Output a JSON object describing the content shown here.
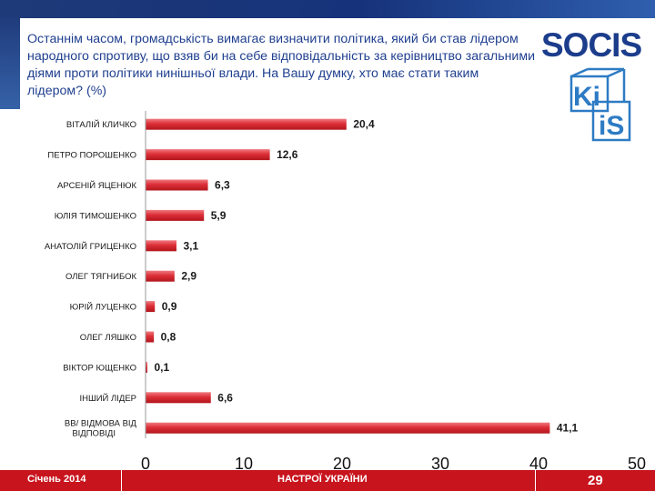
{
  "question": "Останнім часом, громадськість вимагає визначити політика, який би став лідером народного спротиву, що взяв би на себе відповідальність за керівництво загальними діями проти політики нинішньої влади. На Вашу думку, хто має стати таким лідером? (%)",
  "logos": {
    "socis_text": "SOCIS",
    "kiis_text_1": "Ki",
    "kiis_text_2": "iS"
  },
  "colors": {
    "bar": "#d82a33",
    "footer": "#c8141d",
    "header": "#1e3a78",
    "question_text": "#1f3f8f"
  },
  "chart_data": {
    "type": "bar",
    "orientation": "horizontal",
    "title": "",
    "xlabel": "",
    "ylabel": "",
    "xlim": [
      0,
      50
    ],
    "ticks": [
      0,
      10,
      20,
      30,
      40,
      50
    ],
    "categories": [
      "ВІТАЛІЙ КЛИЧКО",
      "ПЕТРО ПОРОШЕНКО",
      "АРСЕНІЙ ЯЦЕНЮК",
      "ЮЛІЯ ТИМОШЕНКО",
      "АНАТОЛІЙ ГРИЦЕНКО",
      "ОЛЕГ ТЯГНИБОК",
      "ЮРІЙ ЛУЦЕНКО",
      "ОЛЕГ ЛЯШКО",
      "ВІКТОР ЮЩЕНКО",
      "ІНШИЙ ЛІДЕР",
      "ВВ/ ВІДМОВА ВІД ВІДПОВІДІ"
    ],
    "values": [
      20.4,
      12.6,
      6.3,
      5.9,
      3.1,
      2.9,
      0.9,
      0.8,
      0.1,
      6.6,
      41.1
    ],
    "value_labels": [
      "20,4",
      "12,6",
      "6,3",
      "5,9",
      "3,1",
      "2,9",
      "0,9",
      "0,8",
      "0,1",
      "6,6",
      "41,1"
    ],
    "grid": false
  },
  "footer": {
    "date": "Січень 2014",
    "section": "НАСТРОЇ УКРАЇНИ",
    "page": "29"
  }
}
